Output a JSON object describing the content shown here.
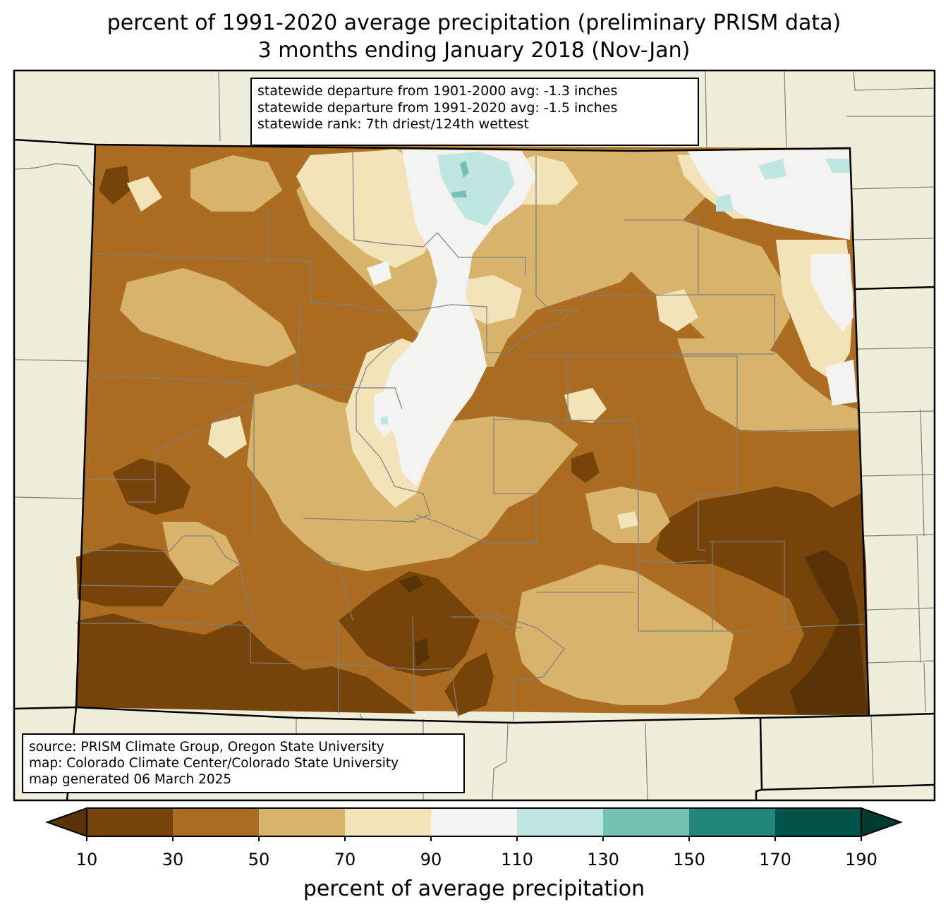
{
  "title": {
    "line1": "percent of 1991-2020 average precipitation (preliminary PRISM data)",
    "line2": "3 months ending January 2018 (Nov-Jan)"
  },
  "stats_box": {
    "line1": "statewide departure from 1901-2000 avg: -1.3 inches",
    "line2": "statewide departure from 1991-2020 avg: -1.5 inches",
    "line3": "statewide rank: 7th driest/124th wettest"
  },
  "source_box": {
    "line1": "source: PRISM Climate Group, Oregon State University",
    "line2": "map: Colorado Climate Center/Colorado State University",
    "line3": "map generated 06 March 2025"
  },
  "colorbar": {
    "label": "percent of average precipitation",
    "ticks": [
      "10",
      "30",
      "50",
      "70",
      "90",
      "110",
      "130",
      "150",
      "170",
      "190"
    ],
    "bins": [
      {
        "range": "10-30",
        "color": "#764309"
      },
      {
        "range": "30-50",
        "color": "#ab6d21"
      },
      {
        "range": "50-70",
        "color": "#d8b36b"
      },
      {
        "range": "70-90",
        "color": "#f3e3b8"
      },
      {
        "range": "90-110",
        "color": "#f3f4f2"
      },
      {
        "range": "110-130",
        "color": "#bfe6e0"
      },
      {
        "range": "130-150",
        "color": "#72c1b3"
      },
      {
        "range": "150-170",
        "color": "#228779"
      },
      {
        "range": "170-190",
        "color": "#00544a"
      }
    ],
    "under_color": "#583307",
    "over_color": "#003a30"
  },
  "colors": {
    "land": "#efeedb",
    "state_border": "#000000",
    "county_border": "#808080"
  }
}
